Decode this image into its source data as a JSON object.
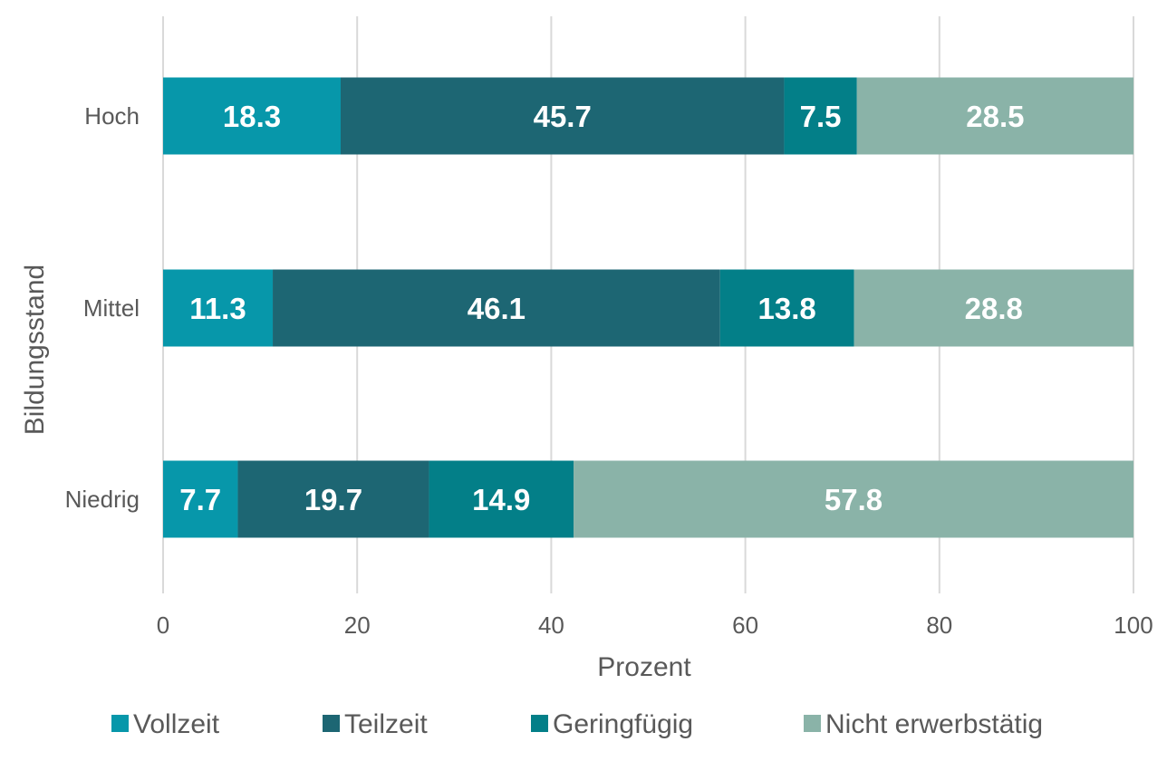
{
  "chart_data": {
    "type": "bar",
    "orientation": "horizontal",
    "stacked": true,
    "categories": [
      "Hoch",
      "Mittel",
      "Niedrig"
    ],
    "series": [
      {
        "name": "Vollzeit",
        "color": "#0797AA",
        "values": [
          18.3,
          11.3,
          7.7
        ]
      },
      {
        "name": "Teilzeit",
        "color": "#1D6673",
        "values": [
          45.7,
          46.1,
          19.7
        ]
      },
      {
        "name": "Geringfügig",
        "color": "#037F88",
        "values": [
          7.5,
          13.8,
          14.9
        ]
      },
      {
        "name": "Nicht erwerbstätig",
        "color": "#8AB3A8",
        "values": [
          28.5,
          28.8,
          57.8
        ]
      }
    ],
    "xlabel": "Prozent",
    "ylabel": "Bildungsstand",
    "xlim": [
      0,
      100
    ],
    "xticks": [
      0,
      20,
      40,
      60,
      80,
      100
    ],
    "grid": true,
    "legend": "bottom"
  }
}
